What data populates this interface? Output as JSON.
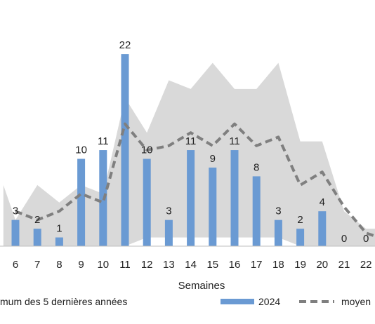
{
  "chart_data": {
    "type": "bar",
    "xlabel": "Semaines",
    "categories": [
      "6",
      "7",
      "8",
      "9",
      "10",
      "11",
      "12",
      "13",
      "14",
      "15",
      "16",
      "17",
      "18",
      "19",
      "20",
      "21",
      "22"
    ],
    "band_left_x": 5,
    "band_left_min": 0,
    "band_left_max": 7,
    "band_min": [
      0,
      0,
      0,
      0,
      0,
      0,
      1,
      1,
      1,
      1,
      1,
      1,
      1,
      0,
      0,
      0,
      0
    ],
    "band_max": [
      3,
      7,
      5,
      7,
      6,
      17,
      13,
      19,
      18,
      21,
      18,
      18,
      21,
      12,
      12,
      4,
      2
    ],
    "band_right_min": 0,
    "band_right_max": 2,
    "series": [
      {
        "name": "2024",
        "values": [
          3,
          2,
          1,
          10,
          11,
          22,
          10,
          3,
          11,
          9,
          11,
          8,
          3,
          2,
          4,
          0,
          0
        ],
        "data_labels": [
          "3",
          "2",
          "1",
          "10",
          "11",
          "22",
          "10",
          "3",
          "11",
          "9",
          "11",
          "8",
          "3",
          "2",
          "4",
          "0",
          "0"
        ]
      },
      {
        "name": "moyen",
        "values": [
          4,
          3,
          4,
          6,
          5,
          14,
          11,
          11.5,
          13,
          11.5,
          14,
          11.5,
          12.5,
          7,
          8.5,
          4.5,
          1.5
        ],
        "extend_right": 1
      }
    ],
    "ylim": [
      0,
      24
    ],
    "grid": false,
    "colors": {
      "bars": "#6a9ad3",
      "band": "#d9d9d9",
      "average_line": "#7f7f7f",
      "axis": "#bfbfbf"
    },
    "legend": {
      "position": "bottom",
      "items": [
        {
          "label": "mum des 5 dernières années",
          "swatch": "band"
        },
        {
          "label": "2024",
          "swatch": "bar"
        },
        {
          "label": "moyen",
          "swatch": "dashed-line"
        }
      ]
    }
  }
}
